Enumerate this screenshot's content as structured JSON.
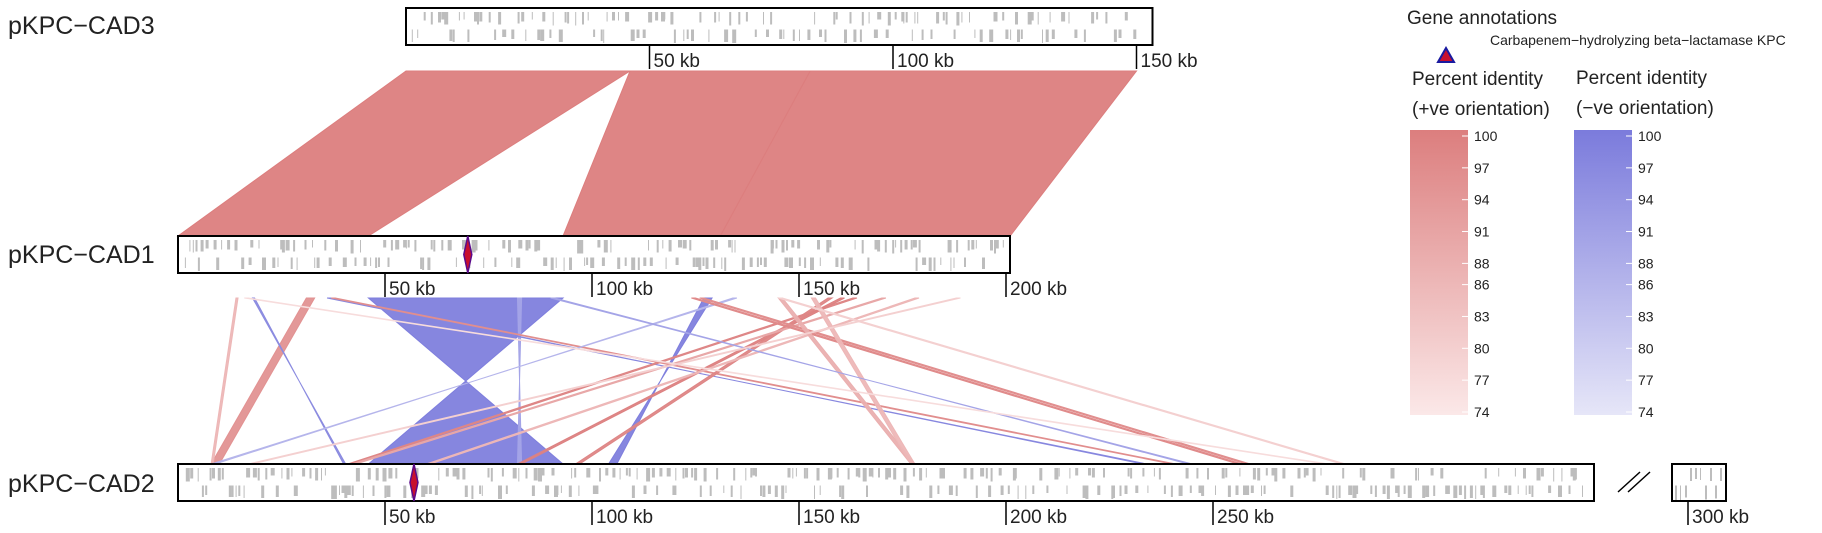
{
  "genomes": [
    {
      "id": "cad3",
      "name": "pKPC−CAD3",
      "length_kb": 150,
      "ticks": [
        {
          "value": 50,
          "label": "50 kb"
        },
        {
          "value": 100,
          "label": "100 kb"
        },
        {
          "value": 150,
          "label": "150 kb"
        }
      ],
      "kpc_kb": null
    },
    {
      "id": "cad1",
      "name": "pKPC−CAD1",
      "length_kb": 200,
      "ticks": [
        {
          "value": 50,
          "label": "50 kb"
        },
        {
          "value": 100,
          "label": "100 kb"
        },
        {
          "value": 150,
          "label": "150 kb"
        },
        {
          "value": 200,
          "label": "200 kb"
        }
      ],
      "kpc_kb": 70
    },
    {
      "id": "cad2",
      "name": "pKPC−CAD2",
      "length_kb": 325,
      "ticks": [
        {
          "value": 50,
          "label": "50 kb"
        },
        {
          "value": 100,
          "label": "100 kb"
        },
        {
          "value": 150,
          "label": "150 kb"
        },
        {
          "value": 200,
          "label": "200 kb"
        },
        {
          "value": 250,
          "label": "250 kb"
        },
        {
          "value": 300,
          "label": "300 kb"
        }
      ],
      "kpc_kb": 57,
      "break_kb": [
        295,
        311
      ]
    }
  ],
  "comparisons": [
    {
      "from": "cad3",
      "to": "cad1",
      "links": [
        {
          "a": [
            0,
            46
          ],
          "b": [
            0,
            46
          ],
          "identity": 100,
          "orientation": "+"
        },
        {
          "a": [
            46,
            83
          ],
          "b": [
            93,
            131
          ],
          "identity": 100,
          "orientation": "+"
        },
        {
          "a": [
            83,
            150
          ],
          "b": [
            131,
            201
          ],
          "identity": 100,
          "orientation": "+"
        }
      ]
    },
    {
      "from": "cad1",
      "to": "cad2",
      "links": [
        {
          "a": [
            46,
            93
          ],
          "b": [
            46,
            93
          ],
          "identity": 99,
          "orientation": "-"
        },
        {
          "a": [
            82,
            83
          ],
          "b": [
            82,
            83
          ],
          "identity": 90,
          "orientation": "-"
        },
        {
          "a": [
            31,
            33
          ],
          "b": [
            8,
            10
          ],
          "identity": 95,
          "orientation": "+"
        },
        {
          "a": [
            127,
            129
          ],
          "b": [
            104,
            106
          ],
          "identity": 99,
          "orientation": "-"
        },
        {
          "a": [
            14,
            14.5
          ],
          "b": [
            8,
            8.5
          ],
          "identity": 86,
          "orientation": "+"
        },
        {
          "a": [
            18,
            18.5
          ],
          "b": [
            40,
            40.5
          ],
          "identity": 96,
          "orientation": "-"
        },
        {
          "a": [
            36,
            37
          ],
          "b": [
            233,
            234
          ],
          "identity": 97,
          "orientation": "-"
        },
        {
          "a": [
            37,
            38
          ],
          "b": [
            240,
            241
          ],
          "identity": 96,
          "orientation": "+"
        },
        {
          "a": [
            134,
            135
          ],
          "b": [
            8,
            9
          ],
          "identity": 86,
          "orientation": "-"
        },
        {
          "a": [
            163,
            164
          ],
          "b": [
            41,
            42
          ],
          "identity": 98,
          "orientation": "+"
        },
        {
          "a": [
            160,
            161
          ],
          "b": [
            82,
            83
          ],
          "identity": 99,
          "orientation": "+"
        },
        {
          "a": [
            157,
            158
          ],
          "b": [
            96,
            97
          ],
          "identity": 98,
          "orientation": "+"
        },
        {
          "a": [
            170,
            171
          ],
          "b": [
            42,
            43
          ],
          "identity": 90,
          "orientation": "+"
        },
        {
          "a": [
            178,
            179
          ],
          "b": [
            60,
            61
          ],
          "identity": 86,
          "orientation": "+"
        },
        {
          "a": [
            124,
            125
          ],
          "b": [
            256,
            257
          ],
          "identity": 97,
          "orientation": "+"
        },
        {
          "a": [
            126,
            127
          ],
          "b": [
            258,
            259
          ],
          "identity": 96,
          "orientation": "+"
        },
        {
          "a": [
            145,
            146
          ],
          "b": [
            177,
            178
          ],
          "identity": 88,
          "orientation": "+"
        },
        {
          "a": [
            153,
            154
          ],
          "b": [
            177,
            178
          ],
          "identity": 86,
          "orientation": "+"
        },
        {
          "a": [
            145,
            146
          ],
          "b": [
            281,
            282
          ],
          "identity": 80,
          "orientation": "+"
        },
        {
          "a": [
            90,
            91
          ],
          "b": [
            244,
            245
          ],
          "identity": 90,
          "orientation": "-"
        },
        {
          "a": [
            16,
            17
          ],
          "b": [
            277,
            278
          ],
          "identity": 77,
          "orientation": "+"
        },
        {
          "a": [
            188,
            189
          ],
          "b": [
            17,
            18
          ],
          "identity": 80,
          "orientation": "+"
        }
      ]
    }
  ],
  "legend": {
    "annotations_title": "Gene annotations",
    "kpc_label": "Carbapenem−hydrolyzing beta−lactamase KPC",
    "pos_title_line1": "Percent identity",
    "pos_title_line2": "(+ve orientation)",
    "neg_title_line1": "Percent identity",
    "neg_title_line2": "(−ve orientation)",
    "scale_labels": [
      "100",
      "97",
      "94",
      "91",
      "88",
      "86",
      "83",
      "80",
      "77",
      "74"
    ],
    "scale_values": [
      100,
      97,
      94,
      91,
      88,
      86,
      83,
      80,
      77,
      74
    ],
    "pos_color_high": "#dc7e7e",
    "pos_color_low": "#fbe8e8",
    "neg_color_high": "#7b7bdc",
    "neg_color_low": "#e6e6f8"
  },
  "colors": {
    "kpc_fill": "#c8102e",
    "kpc_outline": "#5a0a8a",
    "gene_tick": "#bdbdbd",
    "frame": "#000000"
  }
}
